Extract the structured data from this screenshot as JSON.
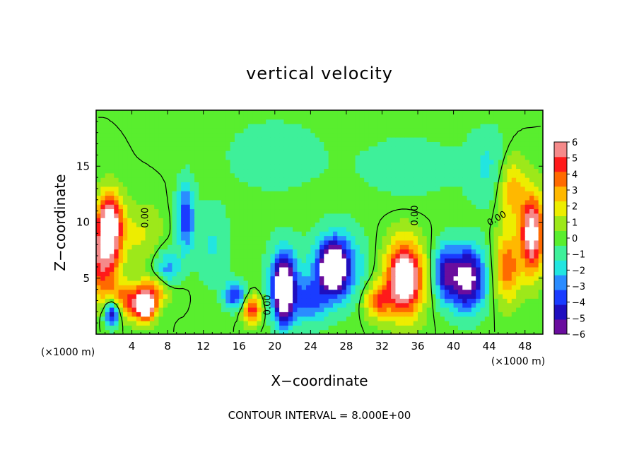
{
  "chart_data": {
    "type": "heatmap",
    "title": "vertical velocity",
    "xlabel": "X−coordinate",
    "ylabel": "Z−coordinate",
    "x_unit_label": "(×1000 m)",
    "x_unit_label_right": "(×1000 m)",
    "xlim": [
      0,
      50
    ],
    "ylim": [
      0,
      20
    ],
    "x_ticks": [
      4,
      8,
      12,
      16,
      20,
      24,
      28,
      32,
      36,
      40,
      44,
      48
    ],
    "y_ticks": [
      5,
      10,
      15
    ],
    "colorbar": {
      "range": [
        -6,
        6
      ],
      "ticks": [
        "6",
        "5",
        "4",
        "3",
        "2",
        "1",
        "0",
        "−1",
        "−2",
        "−3",
        "−4",
        "−5",
        "−6"
      ],
      "colors": [
        "#6a0d9e",
        "#1f0fbf",
        "#1a3cff",
        "#2a8cff",
        "#22e5e0",
        "#3ef09a",
        "#59ee2e",
        "#9de81a",
        "#eded00",
        "#ffb800",
        "#ff6a00",
        "#ff1a1a",
        "#f58a8a"
      ]
    },
    "contour_labels": [
      "0.00",
      "0.00",
      "0.00",
      "0.00"
    ],
    "footer": "CONTOUR INTERVAL = 8.000E+00",
    "features": [
      {
        "x": 1.5,
        "z": 10.0,
        "value": 7,
        "sx": 1.4,
        "sz": 2.6
      },
      {
        "x": 0.8,
        "z": 6.5,
        "value": 5,
        "sx": 1.8,
        "sz": 3.0
      },
      {
        "x": 3.5,
        "z": 3.0,
        "value": 4,
        "sx": 2.5,
        "sz": 1.5
      },
      {
        "x": 5.5,
        "z": 2.5,
        "value": 7,
        "sx": 1.1,
        "sz": 1.3
      },
      {
        "x": 1.8,
        "z": 2.0,
        "value": -6,
        "sx": 0.9,
        "sz": 1.2
      },
      {
        "x": 7.0,
        "z": 4.0,
        "value": 3,
        "sx": 2.0,
        "sz": 1.3
      },
      {
        "x": 10.0,
        "z": 10.5,
        "value": -4,
        "sx": 1.0,
        "sz": 3.0
      },
      {
        "x": 8.0,
        "z": 5.5,
        "value": -3,
        "sx": 1.4,
        "sz": 2.0
      },
      {
        "x": 15.5,
        "z": 3.5,
        "value": -4,
        "sx": 1.2,
        "sz": 1.2
      },
      {
        "x": 17.5,
        "z": 2.2,
        "value": 5,
        "sx": 1.0,
        "sz": 1.2
      },
      {
        "x": 21.0,
        "z": 4.0,
        "value": -7,
        "sx": 1.0,
        "sz": 2.8
      },
      {
        "x": 21.0,
        "z": 4.5,
        "value": -3,
        "sx": 2.0,
        "sz": 3.5
      },
      {
        "x": 26.5,
        "z": 6.0,
        "value": -7,
        "sx": 1.4,
        "sz": 2.0
      },
      {
        "x": 27.0,
        "z": 6.0,
        "value": -4,
        "sx": 2.8,
        "sz": 3.2
      },
      {
        "x": 24.0,
        "z": 3.0,
        "value": -3,
        "sx": 2.0,
        "sz": 2.0
      },
      {
        "x": 34.5,
        "z": 5.0,
        "value": 8,
        "sx": 2.0,
        "sz": 3.2
      },
      {
        "x": 31.5,
        "z": 3.0,
        "value": 4,
        "sx": 1.5,
        "sz": 1.5
      },
      {
        "x": 41.5,
        "z": 5.0,
        "value": -7,
        "sx": 2.0,
        "sz": 2.8
      },
      {
        "x": 39.0,
        "z": 5.5,
        "value": -4,
        "sx": 1.2,
        "sz": 2.5
      },
      {
        "x": 46.0,
        "z": 6.0,
        "value": 4,
        "sx": 1.4,
        "sz": 3.0
      },
      {
        "x": 48.8,
        "z": 9.0,
        "value": 7,
        "sx": 1.3,
        "sz": 3.5
      },
      {
        "x": 46.5,
        "z": 13.0,
        "value": 3,
        "sx": 1.5,
        "sz": 3.0
      },
      {
        "x": 5.0,
        "z": 9.0,
        "value": 1.5,
        "sx": 2.5,
        "sz": 2.5
      },
      {
        "x": 20.0,
        "z": 16.0,
        "value": -1,
        "sx": 6.0,
        "sz": 3.5
      },
      {
        "x": 35.0,
        "z": 15.0,
        "value": -1,
        "sx": 6.0,
        "sz": 3.0
      },
      {
        "x": 44.0,
        "z": 15.0,
        "value": -1.5,
        "sx": 2.5,
        "sz": 3.5
      },
      {
        "x": 13.0,
        "z": 8.0,
        "value": -1.5,
        "sx": 2.0,
        "sz": 3.5
      }
    ]
  }
}
